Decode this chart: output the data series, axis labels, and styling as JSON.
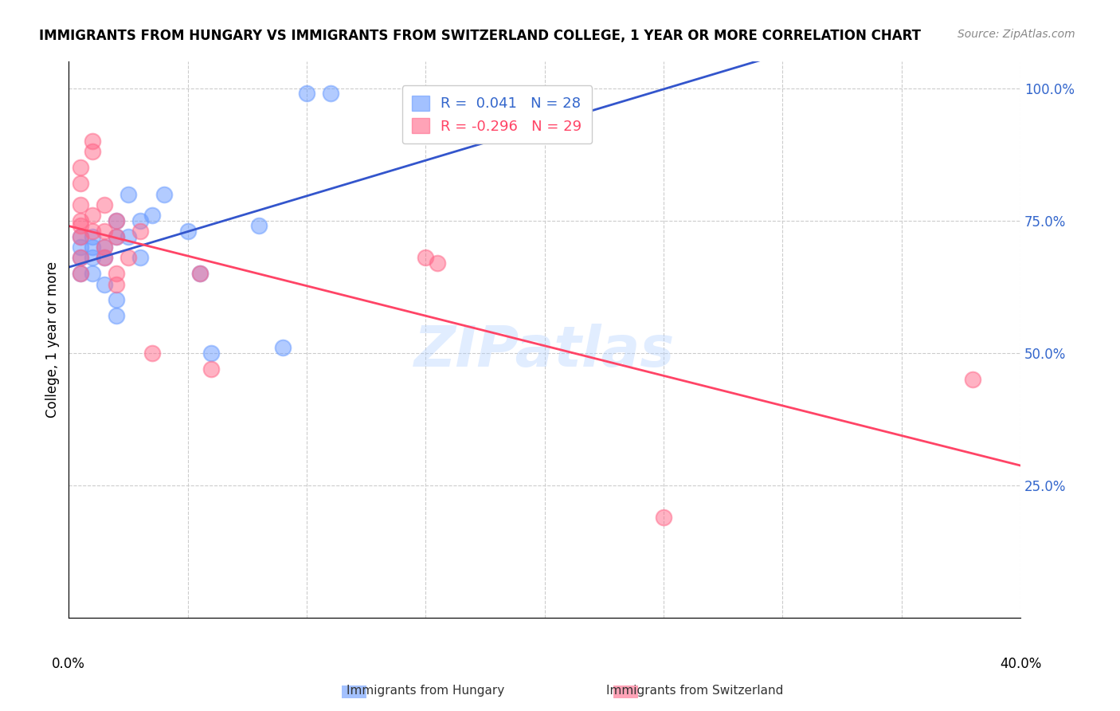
{
  "title": "IMMIGRANTS FROM HUNGARY VS IMMIGRANTS FROM SWITZERLAND COLLEGE, 1 YEAR OR MORE CORRELATION CHART",
  "source": "Source: ZipAtlas.com",
  "ylabel": "College, 1 year or more",
  "xlim": [
    0.0,
    0.4
  ],
  "ylim": [
    0.0,
    1.05
  ],
  "watermark": "ZIPatlas",
  "blue_color": "#6699ff",
  "pink_color": "#ff6688",
  "blue_line_color": "#3355cc",
  "pink_line_color": "#ff4466",
  "hungary_dots": [
    [
      0.005,
      0.68
    ],
    [
      0.005,
      0.7
    ],
    [
      0.005,
      0.72
    ],
    [
      0.005,
      0.65
    ],
    [
      0.01,
      0.68
    ],
    [
      0.01,
      0.7
    ],
    [
      0.01,
      0.72
    ],
    [
      0.01,
      0.65
    ],
    [
      0.015,
      0.7
    ],
    [
      0.015,
      0.68
    ],
    [
      0.02,
      0.75
    ],
    [
      0.02,
      0.72
    ],
    [
      0.025,
      0.72
    ],
    [
      0.025,
      0.8
    ],
    [
      0.03,
      0.75
    ],
    [
      0.03,
      0.68
    ],
    [
      0.035,
      0.76
    ],
    [
      0.04,
      0.8
    ],
    [
      0.05,
      0.73
    ],
    [
      0.055,
      0.65
    ],
    [
      0.06,
      0.5
    ],
    [
      0.08,
      0.74
    ],
    [
      0.09,
      0.51
    ],
    [
      0.015,
      0.63
    ],
    [
      0.02,
      0.6
    ],
    [
      0.02,
      0.57
    ],
    [
      0.1,
      0.99
    ],
    [
      0.11,
      0.99
    ]
  ],
  "switzerland_dots": [
    [
      0.005,
      0.85
    ],
    [
      0.005,
      0.82
    ],
    [
      0.005,
      0.78
    ],
    [
      0.005,
      0.75
    ],
    [
      0.005,
      0.74
    ],
    [
      0.005,
      0.72
    ],
    [
      0.005,
      0.68
    ],
    [
      0.005,
      0.65
    ],
    [
      0.01,
      0.9
    ],
    [
      0.01,
      0.88
    ],
    [
      0.01,
      0.76
    ],
    [
      0.01,
      0.73
    ],
    [
      0.015,
      0.78
    ],
    [
      0.015,
      0.73
    ],
    [
      0.015,
      0.7
    ],
    [
      0.015,
      0.68
    ],
    [
      0.02,
      0.75
    ],
    [
      0.02,
      0.72
    ],
    [
      0.02,
      0.65
    ],
    [
      0.02,
      0.63
    ],
    [
      0.025,
      0.68
    ],
    [
      0.03,
      0.73
    ],
    [
      0.035,
      0.5
    ],
    [
      0.055,
      0.65
    ],
    [
      0.06,
      0.47
    ],
    [
      0.15,
      0.68
    ],
    [
      0.155,
      0.67
    ],
    [
      0.25,
      0.19
    ],
    [
      0.38,
      0.45
    ]
  ],
  "hungary_R": 0.041,
  "hungary_N": 28,
  "switzerland_R": -0.296,
  "switzerland_N": 29
}
